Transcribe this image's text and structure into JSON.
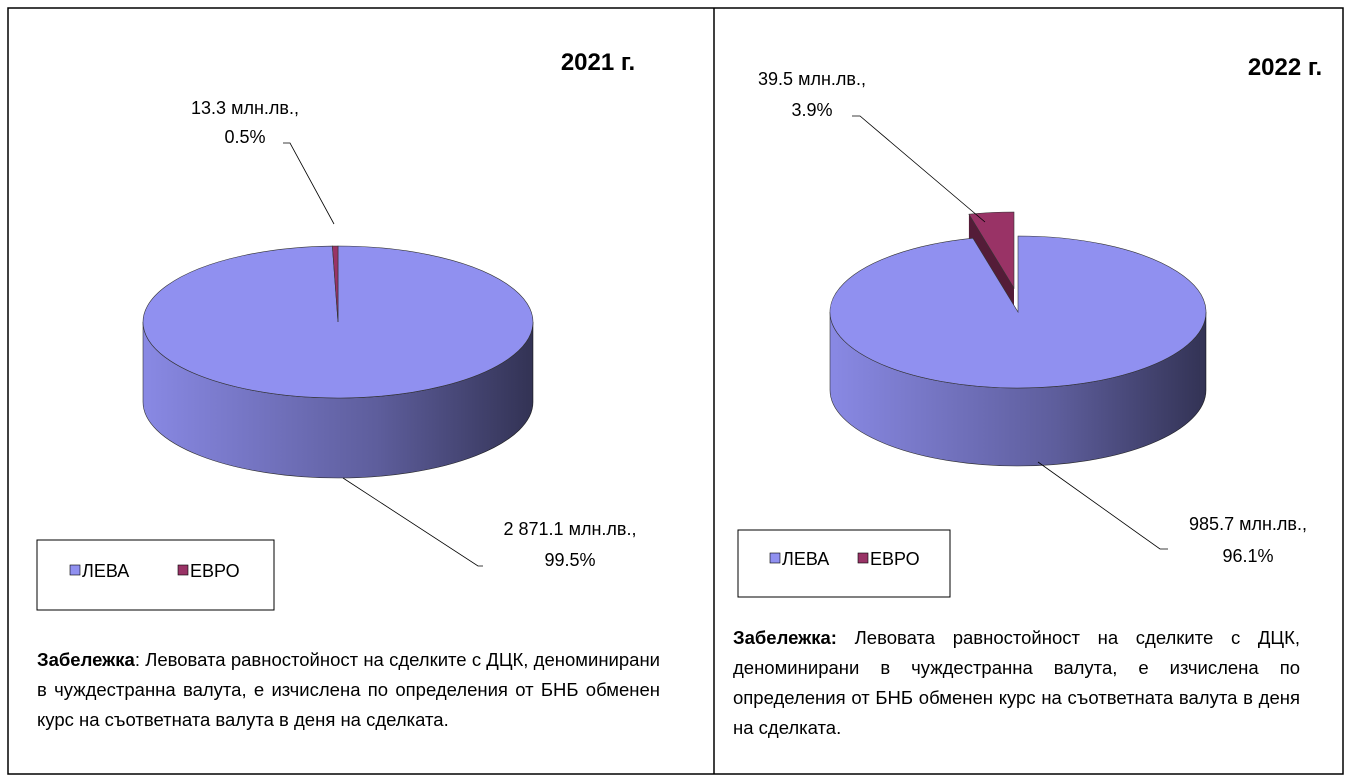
{
  "chart_data": [
    {
      "type": "pie",
      "title": "2021 г.",
      "categories": [
        "ЛЕВА",
        "ЕВРО"
      ],
      "values": [
        2871.1,
        13.3
      ],
      "value_labels": [
        "2 871.1 млн.лв.,",
        "13.3 млн.лв.,"
      ],
      "percents": [
        99.5,
        0.5
      ],
      "percent_labels": [
        "99.5%",
        "0.5%"
      ],
      "colors": [
        "#9090f0",
        "#993366"
      ]
    },
    {
      "type": "pie",
      "title": "2022 г.",
      "categories": [
        "ЛЕВА",
        "ЕВРО"
      ],
      "values": [
        985.7,
        39.5
      ],
      "value_labels": [
        "985.7 млн.лв.,",
        "39.5 млн.лв.,"
      ],
      "percents": [
        96.1,
        3.9
      ],
      "percent_labels": [
        "96.1%",
        "3.9%"
      ],
      "colors": [
        "#9090f0",
        "#993366"
      ]
    }
  ],
  "notes": [
    {
      "label": "Забележка",
      "text": ": Левовата равностойност на сделките с ДЦК, деноминирани в чуждестранна валута, е изчислена по определения от БНБ обменен курс на съответната валута в деня на сделката."
    },
    {
      "label": "Забележка:",
      "text": " Левовата равностойност на сделките с ДЦК, деноминирани в чуждестранна валута, е изчислена по определения от БНБ обменен курс на съответната валута в деня на сделката."
    }
  ]
}
